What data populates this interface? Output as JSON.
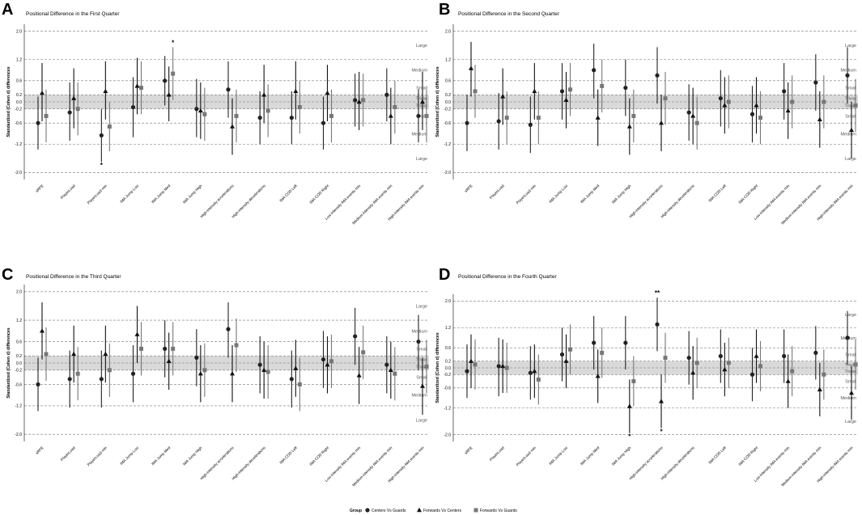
{
  "chart_data": [
    {
      "type": "scatter",
      "panel_label": "A",
      "title": "Positional Difference in the First Quarter",
      "ylabel": "Standardized (Cohen d) differences",
      "ylim": [
        -2.2,
        2.2
      ],
      "yticks": [
        "2.0",
        "1.2",
        "0.6",
        "0.2",
        "0.0",
        "-0.2",
        "-0.6",
        "-1.2",
        "-2.0"
      ],
      "categories": [
        "sRPE",
        "PlayerLoad",
        "PlayerLoad·min",
        "IMA Jump Low",
        "IMA Jump Med",
        "IMA Jump High",
        "High-intensity accelerations",
        "High-intensity decelerations",
        "IMA COD Left",
        "IMA COD Right",
        "Low-intensity IMA events·min",
        "Medium-intensity IMA events·min",
        "High-intensity IMA events·min"
      ],
      "series": [
        {
          "name": "Centers Vs Guards",
          "estimate": [
            -0.6,
            -0.3,
            -0.95,
            -0.15,
            0.6,
            -0.2,
            0.35,
            -0.45,
            -0.45,
            -0.6,
            0.05,
            0.2,
            -0.4
          ],
          "lower": [
            -1.35,
            -1.1,
            -1.7,
            -1.0,
            -0.1,
            -1.0,
            -0.45,
            -1.2,
            -1.2,
            -1.35,
            -0.7,
            -0.55,
            -1.15
          ],
          "upper": [
            0.15,
            0.55,
            -0.2,
            0.7,
            1.3,
            0.65,
            1.15,
            0.3,
            0.3,
            0.15,
            0.8,
            0.95,
            0.35
          ]
        },
        {
          "name": "Forwards Vs Centers",
          "estimate": [
            0.25,
            0.1,
            0.3,
            0.45,
            0.2,
            -0.25,
            -0.7,
            0.2,
            0.3,
            0.25,
            0.0,
            -0.4,
            0.0
          ],
          "lower": [
            -0.55,
            -0.75,
            -0.5,
            -0.35,
            -0.55,
            -1.05,
            -1.5,
            -0.6,
            -0.5,
            -0.55,
            -0.8,
            -1.2,
            -0.8
          ],
          "upper": [
            1.1,
            0.95,
            1.15,
            1.25,
            1.0,
            0.55,
            0.1,
            1.05,
            1.15,
            1.05,
            0.85,
            0.4,
            0.85
          ]
        },
        {
          "name": "Forwards Vs Guards",
          "estimate": [
            -0.4,
            -0.2,
            -0.7,
            0.4,
            0.8,
            -0.35,
            -0.4,
            -0.25,
            -0.15,
            -0.4,
            0.05,
            -0.15,
            -0.4
          ],
          "lower": [
            -1.15,
            -0.95,
            -1.4,
            -0.35,
            0.05,
            -1.1,
            -1.15,
            -1.0,
            -0.9,
            -1.15,
            -0.7,
            -0.9,
            -1.15
          ],
          "upper": [
            0.35,
            0.55,
            0.0,
            1.15,
            1.55,
            0.4,
            0.35,
            0.5,
            0.6,
            0.35,
            0.8,
            0.6,
            0.35
          ]
        }
      ],
      "zone_labels": [
        "Large",
        "Medium",
        "Small",
        "Trivial",
        "Trivial",
        "Small",
        "Medium",
        "Large"
      ],
      "annotations": [
        {
          "category": "IMA Jump Med",
          "series": "Forwards Vs Guards",
          "text": "*",
          "position": "above"
        },
        {
          "category": "PlayerLoad·min",
          "series": "Centers Vs Guards",
          "text": "*",
          "position": "below"
        }
      ]
    },
    {
      "type": "scatter",
      "panel_label": "B",
      "title": "Positional Difference in the Second Quarter",
      "ylabel": "Standardized (Cohen d) differences",
      "ylim": [
        -2.2,
        2.2
      ],
      "yticks": [
        "2.0",
        "1.2",
        "0.6",
        "0.2",
        "0.0",
        "-0.2",
        "-0.6",
        "-1.2",
        "-2.0"
      ],
      "categories": [
        "sRPE",
        "PlayerLoad",
        "PlayerLoad·min",
        "IMA Jump Low",
        "IMA Jump Med",
        "IMA Jump High",
        "High-intensity accelerations",
        "High-intensity decelerations",
        "IMA COD Left",
        "IMA COD Right",
        "Low-intensity IMA events·min",
        "Medium-intensity IMA events·min",
        "High-intensity IMA events·min"
      ],
      "series": [
        {
          "name": "Centers Vs Guards",
          "estimate": [
            -0.6,
            -0.55,
            -0.65,
            0.3,
            0.9,
            0.4,
            0.75,
            -0.3,
            0.1,
            -0.35,
            0.3,
            0.55,
            0.75
          ],
          "lower": [
            -1.4,
            -1.35,
            -1.45,
            -0.5,
            0.1,
            -0.4,
            -0.05,
            -1.1,
            -0.7,
            -1.15,
            -0.5,
            -0.25,
            -0.05
          ],
          "upper": [
            0.2,
            0.25,
            0.15,
            1.1,
            1.65,
            1.2,
            1.55,
            0.5,
            0.9,
            0.45,
            1.1,
            1.35,
            1.55
          ]
        },
        {
          "name": "Forwards Vs Centers",
          "estimate": [
            0.95,
            0.15,
            0.3,
            0.05,
            -0.45,
            -0.7,
            -0.6,
            -0.4,
            -0.1,
            -0.1,
            -0.25,
            -0.5,
            -0.8
          ],
          "lower": [
            0.15,
            -0.65,
            -0.5,
            -0.75,
            -1.25,
            -1.5,
            -1.4,
            -1.2,
            -0.9,
            -0.9,
            -1.05,
            -1.3,
            -1.6
          ],
          "upper": [
            1.7,
            0.95,
            1.1,
            0.85,
            0.35,
            0.1,
            0.2,
            0.4,
            0.7,
            0.7,
            0.55,
            0.3,
            0.0
          ]
        },
        {
          "name": "Forwards Vs Guards",
          "estimate": [
            0.3,
            -0.45,
            -0.45,
            0.35,
            0.45,
            -0.4,
            0.1,
            -0.6,
            0.0,
            -0.45,
            0.0,
            0.0,
            -0.1
          ],
          "lower": [
            -0.45,
            -1.2,
            -1.2,
            -0.4,
            -0.3,
            -1.15,
            -0.65,
            -1.35,
            -0.75,
            -1.2,
            -0.75,
            -0.75,
            -0.85
          ],
          "upper": [
            1.05,
            0.3,
            0.3,
            1.1,
            1.2,
            0.35,
            0.85,
            0.15,
            0.75,
            0.3,
            0.75,
            0.75,
            0.65
          ]
        }
      ],
      "zone_labels": [
        "Large",
        "Medium",
        "Small",
        "Trivial",
        "Trivial",
        "Small",
        "Medium",
        "Large"
      ],
      "annotations": []
    },
    {
      "type": "scatter",
      "panel_label": "C",
      "title": "Positional Difference in the Third Quarter",
      "ylabel": "Standardized (Cohen d) differences",
      "ylim": [
        -2.2,
        2.2
      ],
      "yticks": [
        "2.0",
        "1.2",
        "0.6",
        "0.2",
        "0.0",
        "-0.2",
        "-0.6",
        "-1.2",
        "-2.0"
      ],
      "categories": [
        "sRPE",
        "PlayerLoad",
        "PlayerLoad·min",
        "IMA Jump Low",
        "IMA Jump Med",
        "IMA Jump High",
        "High-intensity accelerations",
        "High-intensity decelerations",
        "IMA COD Left",
        "IMA COD Right",
        "Low-intensity IMA events·min",
        "Medium-intensity IMA events·min",
        "High-intensity IMA events·min"
      ],
      "series": [
        {
          "name": "Centers Vs Guards",
          "estimate": [
            -0.6,
            -0.45,
            -0.45,
            -0.3,
            0.4,
            0.15,
            0.95,
            -0.05,
            -0.45,
            0.1,
            0.75,
            -0.05,
            0.6
          ],
          "lower": [
            -1.35,
            -1.25,
            -1.25,
            -1.1,
            -0.4,
            -0.65,
            0.15,
            -0.85,
            -1.25,
            -0.7,
            -0.05,
            -0.85,
            -0.2
          ],
          "upper": [
            0.15,
            0.35,
            0.35,
            0.5,
            1.2,
            0.95,
            1.7,
            0.75,
            0.35,
            0.9,
            1.55,
            0.75,
            1.35
          ]
        },
        {
          "name": "Forwards Vs Centers",
          "estimate": [
            0.9,
            0.25,
            0.25,
            0.8,
            0.05,
            -0.3,
            -0.3,
            -0.2,
            -0.15,
            -0.05,
            -0.35,
            -0.2,
            -0.65
          ],
          "lower": [
            0.1,
            -0.55,
            -0.55,
            0.0,
            -0.75,
            -1.1,
            -1.1,
            -1.0,
            -0.95,
            -0.85,
            -1.15,
            -1.0,
            -1.45
          ],
          "upper": [
            1.7,
            1.05,
            1.05,
            1.6,
            0.85,
            0.5,
            0.5,
            0.6,
            0.65,
            0.75,
            0.45,
            0.6,
            0.15
          ]
        },
        {
          "name": "Forwards Vs Guards",
          "estimate": [
            0.25,
            -0.3,
            -0.2,
            0.4,
            0.4,
            -0.2,
            0.5,
            -0.25,
            -0.6,
            0.05,
            0.3,
            -0.3,
            -0.1
          ],
          "lower": [
            -0.5,
            -1.05,
            -0.95,
            -0.35,
            -0.35,
            -0.95,
            -0.25,
            -1.0,
            -1.35,
            -0.7,
            -0.45,
            -1.05,
            -0.85
          ],
          "upper": [
            1.0,
            0.45,
            0.55,
            1.15,
            1.15,
            0.55,
            1.25,
            0.5,
            0.15,
            0.8,
            1.05,
            0.45,
            0.65
          ]
        }
      ],
      "zone_labels": [
        "Large",
        "Medium",
        "Small",
        "Trivial",
        "Trivial",
        "Small",
        "Medium",
        "Large"
      ],
      "annotations": []
    },
    {
      "type": "scatter",
      "panel_label": "D",
      "title": "Positional Difference in the Fourth Quarter",
      "ylabel": "Standardized (Cohen d) differences",
      "ylim": [
        -2.2,
        2.2
      ],
      "yticks": [
        "2.0",
        "1.2",
        "0.6",
        "0.2",
        "0.0",
        "-0.2",
        "-0.6",
        "-1.2",
        "-2.0"
      ],
      "categories": [
        "sRPE",
        "PlayerLoad",
        "PlayerLoad·min",
        "IMA Jump Low",
        "IMA Jump Med",
        "IMA Jump High",
        "High-intensity accelerations",
        "High-intensity decelerations",
        "IMA COD Left",
        "IMA COD Right",
        "Low-intensity IMA events·min",
        "Medium-intensity IMA events·min",
        "High-intensity IMA events·min"
      ],
      "series": [
        {
          "name": "Centers Vs Guards",
          "estimate": [
            -0.1,
            0.05,
            -0.15,
            0.4,
            0.75,
            0.75,
            1.3,
            0.3,
            0.35,
            -0.2,
            0.35,
            0.45,
            0.9
          ],
          "lower": [
            -0.9,
            -0.85,
            -0.95,
            -0.4,
            -0.05,
            -0.05,
            0.5,
            -0.5,
            -0.45,
            -1.0,
            -0.45,
            -0.35,
            0.1
          ],
          "upper": [
            0.7,
            0.9,
            0.65,
            1.2,
            1.55,
            1.55,
            2.1,
            1.1,
            1.15,
            0.6,
            1.15,
            1.25,
            1.7
          ]
        },
        {
          "name": "Forwards Vs Centers",
          "estimate": [
            0.2,
            0.05,
            -0.1,
            0.2,
            -0.25,
            -1.15,
            -1.0,
            -0.15,
            -0.05,
            0.35,
            -0.4,
            -0.65,
            -0.75
          ],
          "lower": [
            -0.6,
            -0.75,
            -0.9,
            -0.6,
            -1.05,
            -1.95,
            -1.8,
            -0.95,
            -0.85,
            -0.45,
            -1.2,
            -1.45,
            -1.55
          ],
          "upper": [
            1.0,
            0.85,
            0.7,
            1.0,
            0.55,
            -0.35,
            -0.2,
            0.65,
            0.75,
            1.15,
            0.4,
            0.15,
            0.05
          ]
        },
        {
          "name": "Forwards Vs Guards",
          "estimate": [
            0.1,
            0.0,
            -0.35,
            0.55,
            0.45,
            -0.4,
            0.3,
            0.15,
            0.15,
            0.05,
            -0.1,
            -0.2,
            0.1
          ],
          "lower": [
            -0.65,
            -0.75,
            -1.1,
            -0.2,
            -0.3,
            -1.15,
            -0.45,
            -0.6,
            -0.6,
            -0.7,
            -0.85,
            -0.95,
            -0.65
          ],
          "upper": [
            0.85,
            0.75,
            0.4,
            1.3,
            1.2,
            0.35,
            1.05,
            0.9,
            0.9,
            0.8,
            0.65,
            0.55,
            0.85
          ]
        }
      ],
      "zone_labels": [
        "Large",
        "Medium",
        "Small",
        "Trivial",
        "Trivial",
        "Small",
        "Medium",
        "Large"
      ],
      "annotations": [
        {
          "category": "High-intensity accelerations",
          "series": "Centers Vs Guards",
          "text": "**",
          "position": "above"
        },
        {
          "category": "High-intensity accelerations",
          "series": "Forwards Vs Centers",
          "text": "*",
          "position": "below"
        },
        {
          "category": "IMA Jump High",
          "series": "Forwards Vs Centers",
          "text": "*",
          "position": "below"
        }
      ]
    }
  ],
  "legend": {
    "title": "Group",
    "items": [
      {
        "label": "Centers Vs Guards",
        "marker": "circle",
        "color": "#222222"
      },
      {
        "label": "Forwards Vs Centers",
        "marker": "triangle",
        "color": "#111111"
      },
      {
        "label": "Forwards Vs Guards",
        "marker": "square",
        "color": "#777777"
      }
    ]
  }
}
